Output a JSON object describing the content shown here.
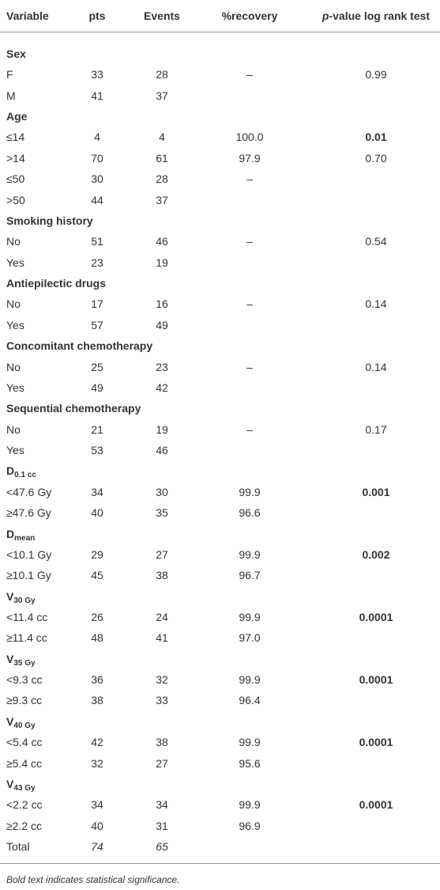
{
  "table": {
    "headers": [
      "Variable",
      "pts",
      "Events",
      "%recovery",
      [
        "p",
        "-value log rank test"
      ]
    ],
    "groups": [
      {
        "title": "Sex",
        "rows": [
          {
            "label": "F",
            "pts": "33",
            "events": "28",
            "recovery": "–",
            "p": "0.99"
          },
          {
            "label": "M",
            "pts": "41",
            "events": "37"
          }
        ]
      },
      {
        "title": "Age",
        "rows": [
          {
            "label": "≤14",
            "pts": "4",
            "events": "4",
            "recovery": "100.0",
            "p": "0.01",
            "p_bold": true
          },
          {
            "label": ">14",
            "pts": "70",
            "events": "61",
            "recovery": "97.9",
            "p": "0.70"
          },
          {
            "label": "≤50",
            "pts": "30",
            "events": "28",
            "recovery": "–"
          },
          {
            "label": ">50",
            "pts": "44",
            "events": "37"
          }
        ]
      },
      {
        "title": "Smoking history",
        "rows": [
          {
            "label": "No",
            "pts": "51",
            "events": "46",
            "recovery": "–",
            "p": "0.54"
          },
          {
            "label": "Yes",
            "pts": "23",
            "events": "19"
          }
        ]
      },
      {
        "title": "Antiepilectic drugs",
        "rows": [
          {
            "label": "No",
            "pts": "17",
            "events": "16",
            "recovery": "–",
            "p": "0.14"
          },
          {
            "label": "Yes",
            "pts": "57",
            "events": "49"
          }
        ]
      },
      {
        "title": "Concomitant chemotherapy",
        "rows": [
          {
            "label": "No",
            "pts": "25",
            "events": "23",
            "recovery": "–",
            "p": "0.14"
          },
          {
            "label": "Yes",
            "pts": "49",
            "events": "42"
          }
        ]
      },
      {
        "title": "Sequential chemotherapy",
        "rows": [
          {
            "label": "No",
            "pts": "21",
            "events": "19",
            "recovery": "–",
            "p": "0.17"
          },
          {
            "label": "Yes",
            "pts": "53",
            "events": "46"
          }
        ]
      },
      {
        "title": "D",
        "subscript": "0.1 cc",
        "rows": [
          {
            "label": "<47.6 Gy",
            "pts": "34",
            "events": "30",
            "recovery": "99.9",
            "p": "0.001",
            "p_bold": true
          },
          {
            "label": "≥47.6 Gy",
            "pts": "40",
            "events": "35",
            "recovery": "96.6"
          }
        ]
      },
      {
        "title": "D",
        "subscript": "mean",
        "rows": [
          {
            "label": "<10.1 Gy",
            "pts": "29",
            "events": "27",
            "recovery": "99.9",
            "p": "0.002",
            "p_bold": true
          },
          {
            "label": "≥10.1 Gy",
            "pts": "45",
            "events": "38",
            "recovery": "96.7"
          }
        ]
      },
      {
        "title": "V",
        "subscript": "30 Gy",
        "rows": [
          {
            "label": "<11.4 cc",
            "pts": "26",
            "events": "24",
            "recovery": "99.9",
            "p": "0.0001",
            "p_bold": true
          },
          {
            "label": "≥11.4 cc",
            "pts": "48",
            "events": "41",
            "recovery": "97.0"
          }
        ]
      },
      {
        "title": "V",
        "subscript": "35 Gy",
        "rows": [
          {
            "label": "<9.3 cc",
            "pts": "36",
            "events": "32",
            "recovery": "99.9",
            "p": "0.0001",
            "p_bold": true
          },
          {
            "label": "≥9.3 cc",
            "pts": "38",
            "events": "33",
            "recovery": "96.4"
          }
        ]
      },
      {
        "title": "V",
        "subscript": "40 Gy",
        "rows": [
          {
            "label": "<5.4 cc",
            "pts": "42",
            "events": "38",
            "recovery": "99.9",
            "p": "0.0001",
            "p_bold": true
          },
          {
            "label": "≥5.4 cc",
            "pts": "32",
            "events": "27",
            "recovery": "95.6"
          }
        ]
      },
      {
        "title": "V",
        "subscript": "43 Gy",
        "rows": [
          {
            "label": "<2.2 cc",
            "pts": "34",
            "events": "34",
            "recovery": "99.9",
            "p": "0.0001",
            "p_bold": true
          },
          {
            "label": "≥2.2 cc",
            "pts": "40",
            "events": "31",
            "recovery": "96.9"
          }
        ]
      }
    ],
    "total": {
      "label": "Total",
      "pts": "74",
      "events": "65"
    },
    "footnote": "Bold text indicates statistical significance."
  }
}
